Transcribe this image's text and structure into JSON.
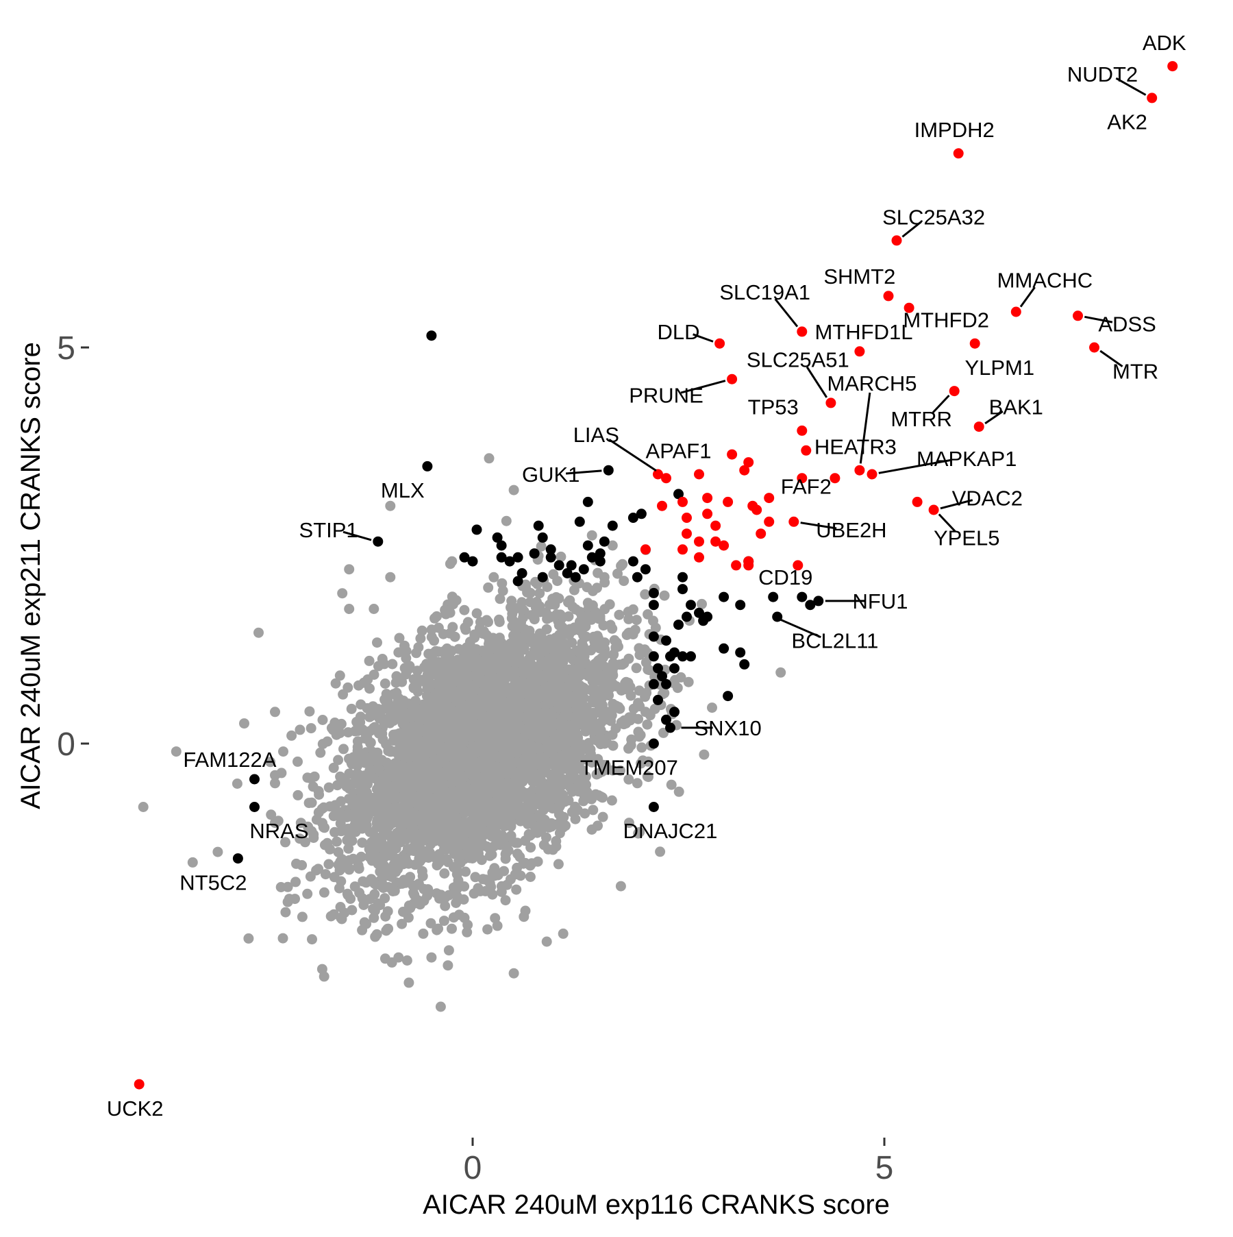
{
  "chart_data": {
    "type": "scatter",
    "xlabel": "AICAR 240uM exp116 CRANKS score",
    "ylabel": "AICAR 240uM exp211 CRANKS score",
    "xlim": [
      -4.3,
      8.8
    ],
    "ylim": [
      -4.8,
      9.2
    ],
    "x_ticks": [
      0,
      5
    ],
    "x_tick_labels": [
      "0",
      "5"
    ],
    "y_ticks": [
      0,
      5
    ],
    "y_tick_labels": [
      "0",
      "5"
    ],
    "grid": false,
    "legend": "none",
    "colors": {
      "background": "#ffffff",
      "red": "#ff0000",
      "black": "#000000",
      "gray": "#a0a0a0"
    },
    "cloud": {
      "color": "#a0a0a0",
      "description_of_bulk": "dense gray point cloud of non-significant genes",
      "center": [
        0.1,
        -0.05
      ],
      "sd": [
        0.85,
        0.85
      ],
      "correlation": 0.45,
      "n": 4000,
      "outliers": [
        [
          -4.0,
          -0.8
        ],
        [
          -3.6,
          -0.1
        ],
        [
          -3.4,
          -1.5
        ],
        [
          -2.6,
          1.4
        ],
        [
          -2.4,
          0.4
        ],
        [
          -2.4,
          -0.4
        ],
        [
          -2.3,
          -0.1
        ],
        [
          -2.2,
          0.1
        ],
        [
          -2.4,
          -1.0
        ],
        [
          -2.1,
          -1.2
        ],
        [
          -1.9,
          -1.6
        ],
        [
          -1.5,
          1.7
        ],
        [
          -1.5,
          2.2
        ],
        [
          -1.6,
          -2.2
        ],
        [
          -1.2,
          -2.2
        ],
        [
          -0.9,
          -2.7
        ],
        [
          -0.6,
          -2.4
        ],
        [
          -0.5,
          -2.7
        ],
        [
          -0.3,
          -2.8
        ],
        [
          -0.1,
          -2.2
        ],
        [
          0.3,
          -2.3
        ],
        [
          0.5,
          3.2
        ],
        [
          0.5,
          -2.9
        ],
        [
          0.9,
          -2.5
        ],
        [
          1.1,
          -2.4
        ],
        [
          1.6,
          2.1
        ],
        [
          1.8,
          -1.8
        ],
        [
          1.9,
          -1.0
        ],
        [
          2.0,
          -0.5
        ],
        [
          2.1,
          0.4
        ],
        [
          1.9,
          1.4
        ],
        [
          1.7,
          2.5
        ],
        [
          -1.0,
          3.0
        ],
        [
          0.2,
          3.6
        ],
        [
          -1.0,
          2.1
        ],
        [
          -1.2,
          1.7
        ]
      ]
    },
    "series": [
      {
        "color": "#ff0000",
        "points": [
          [
            8.5,
            8.55
          ],
          [
            8.25,
            8.15
          ],
          [
            5.9,
            7.45
          ],
          [
            5.15,
            6.35
          ],
          [
            5.05,
            5.65
          ],
          [
            5.3,
            5.5
          ],
          [
            6.6,
            5.45
          ],
          [
            7.35,
            5.4
          ],
          [
            4.0,
            5.2
          ],
          [
            6.1,
            5.05
          ],
          [
            7.55,
            5.0
          ],
          [
            3.0,
            5.05
          ],
          [
            4.7,
            4.95
          ],
          [
            3.15,
            4.6
          ],
          [
            5.85,
            4.45
          ],
          [
            4.35,
            4.3
          ],
          [
            6.15,
            4.0
          ],
          [
            4.0,
            3.95
          ],
          [
            4.05,
            3.7
          ],
          [
            3.15,
            3.65
          ],
          [
            3.35,
            3.55
          ],
          [
            4.7,
            3.45
          ],
          [
            4.85,
            3.4
          ],
          [
            2.25,
            3.4
          ],
          [
            2.35,
            3.35
          ],
          [
            2.75,
            3.4
          ],
          [
            3.3,
            3.45
          ],
          [
            4.4,
            3.35
          ],
          [
            4.0,
            3.35
          ],
          [
            5.4,
            3.05
          ],
          [
            5.6,
            2.95
          ],
          [
            3.4,
            3.0
          ],
          [
            3.6,
            3.1
          ],
          [
            3.45,
            2.95
          ],
          [
            2.3,
            3.0
          ],
          [
            2.55,
            3.05
          ],
          [
            2.6,
            2.85
          ],
          [
            2.85,
            3.1
          ],
          [
            3.1,
            3.05
          ],
          [
            2.6,
            2.65
          ],
          [
            2.85,
            2.9
          ],
          [
            2.95,
            2.75
          ],
          [
            3.6,
            2.8
          ],
          [
            2.95,
            2.55
          ],
          [
            2.75,
            2.55
          ],
          [
            3.05,
            2.5
          ],
          [
            2.55,
            2.45
          ],
          [
            2.1,
            2.45
          ],
          [
            3.2,
            2.25
          ],
          [
            3.9,
            2.8
          ],
          [
            3.5,
            2.65
          ],
          [
            2.75,
            2.35
          ],
          [
            3.35,
            2.3
          ],
          [
            3.35,
            2.25
          ],
          [
            3.95,
            2.25
          ],
          [
            -4.05,
            -4.3
          ]
        ]
      },
      {
        "color": "#000000",
        "points": [
          [
            -0.5,
            5.15
          ],
          [
            -0.55,
            3.5
          ],
          [
            -1.15,
            2.55
          ],
          [
            1.65,
            3.45
          ],
          [
            1.4,
            3.05
          ],
          [
            1.3,
            2.8
          ],
          [
            1.7,
            2.75
          ],
          [
            1.95,
            2.85
          ],
          [
            2.05,
            2.9
          ],
          [
            0.05,
            2.7
          ],
          [
            0.3,
            2.6
          ],
          [
            0.35,
            2.5
          ],
          [
            0.8,
            2.75
          ],
          [
            0.85,
            2.6
          ],
          [
            0.95,
            2.45
          ],
          [
            1.4,
            2.5
          ],
          [
            1.6,
            2.55
          ],
          [
            1.55,
            2.4
          ],
          [
            -0.1,
            2.35
          ],
          [
            0.0,
            2.3
          ],
          [
            0.35,
            2.35
          ],
          [
            0.45,
            2.3
          ],
          [
            0.55,
            2.35
          ],
          [
            0.75,
            2.4
          ],
          [
            0.95,
            2.35
          ],
          [
            1.05,
            2.25
          ],
          [
            1.2,
            2.25
          ],
          [
            1.35,
            2.2
          ],
          [
            1.45,
            2.35
          ],
          [
            1.55,
            2.3
          ],
          [
            1.25,
            2.1
          ],
          [
            0.6,
            2.15
          ],
          [
            0.55,
            2.05
          ],
          [
            0.85,
            2.1
          ],
          [
            1.15,
            2.15
          ],
          [
            1.95,
            2.3
          ],
          [
            2.0,
            2.1
          ],
          [
            2.1,
            2.2
          ],
          [
            2.5,
            3.15
          ],
          [
            2.55,
            2.1
          ],
          [
            2.2,
            1.9
          ],
          [
            2.55,
            1.95
          ],
          [
            2.2,
            1.75
          ],
          [
            2.65,
            1.75
          ],
          [
            2.6,
            1.6
          ],
          [
            2.75,
            1.65
          ],
          [
            2.8,
            1.55
          ],
          [
            2.85,
            1.6
          ],
          [
            2.5,
            1.5
          ],
          [
            2.2,
            1.35
          ],
          [
            2.35,
            1.3
          ],
          [
            2.4,
            1.1
          ],
          [
            2.45,
            1.15
          ],
          [
            2.55,
            1.1
          ],
          [
            2.2,
            1.1
          ],
          [
            2.25,
            0.95
          ],
          [
            2.3,
            0.85
          ],
          [
            2.45,
            0.95
          ],
          [
            2.35,
            0.75
          ],
          [
            2.2,
            0.75
          ],
          [
            2.25,
            0.55
          ],
          [
            2.45,
            0.4
          ],
          [
            2.35,
            0.3
          ],
          [
            2.4,
            0.2
          ],
          [
            2.2,
            0.0
          ],
          [
            3.35,
            2.3
          ],
          [
            3.65,
            1.85
          ],
          [
            3.05,
            1.85
          ],
          [
            3.25,
            1.75
          ],
          [
            3.7,
            1.6
          ],
          [
            4.0,
            1.85
          ],
          [
            4.1,
            1.75
          ],
          [
            4.2,
            1.8
          ],
          [
            3.05,
            1.2
          ],
          [
            3.25,
            1.15
          ],
          [
            3.3,
            1.0
          ],
          [
            2.65,
            1.1
          ],
          [
            3.1,
            0.6
          ],
          [
            -2.65,
            -0.45
          ],
          [
            -2.65,
            -0.8
          ],
          [
            -2.85,
            -1.45
          ],
          [
            2.2,
            -0.8
          ]
        ]
      }
    ],
    "labels": [
      {
        "text": "ADK",
        "x": 8.5,
        "y": 8.55,
        "lx": 8.4,
        "ly": 8.85
      },
      {
        "text": "NUDT2",
        "x": 8.25,
        "y": 8.15,
        "lx": 7.65,
        "ly": 8.45
      },
      {
        "text": "AK2",
        "x": 8.25,
        "y": 8.15,
        "lx": 7.95,
        "ly": 7.85
      },
      {
        "text": "IMPDH2",
        "x": 5.9,
        "y": 7.45,
        "lx": 5.85,
        "ly": 7.75
      },
      {
        "text": "SLC25A32",
        "x": 5.15,
        "y": 6.35,
        "lx": 5.6,
        "ly": 6.65
      },
      {
        "text": "SHMT2",
        "x": 5.05,
        "y": 5.65,
        "lx": 4.7,
        "ly": 5.9
      },
      {
        "text": "MMACHC",
        "x": 6.6,
        "y": 5.45,
        "lx": 6.95,
        "ly": 5.85
      },
      {
        "text": "SLC19A1",
        "x": 4.0,
        "y": 5.2,
        "lx": 3.55,
        "ly": 5.7
      },
      {
        "text": "MTHFD2",
        "x": 5.3,
        "y": 5.5,
        "lx": 5.75,
        "ly": 5.35
      },
      {
        "text": "MTHFD1L",
        "x": 4.7,
        "y": 4.95,
        "lx": 4.75,
        "ly": 5.2
      },
      {
        "text": "ADSS",
        "x": 7.35,
        "y": 5.4,
        "lx": 7.95,
        "ly": 5.3
      },
      {
        "text": "DLD",
        "x": 3.0,
        "y": 5.05,
        "lx": 2.5,
        "ly": 5.2
      },
      {
        "text": "SLC25A51",
        "x": 4.35,
        "y": 4.3,
        "lx": 3.95,
        "ly": 4.85
      },
      {
        "text": "YLPM1",
        "x": 6.1,
        "y": 5.05,
        "lx": 6.4,
        "ly": 4.75
      },
      {
        "text": "MTR",
        "x": 7.55,
        "y": 5.0,
        "lx": 8.05,
        "ly": 4.7
      },
      {
        "text": "MARCH5",
        "x": 4.7,
        "y": 3.45,
        "lx": 4.85,
        "ly": 4.55
      },
      {
        "text": "PRUNE",
        "x": 3.15,
        "y": 4.6,
        "lx": 2.35,
        "ly": 4.4
      },
      {
        "text": "TP53",
        "x": 4.0,
        "y": 3.95,
        "lx": 3.65,
        "ly": 4.25
      },
      {
        "text": "BAK1",
        "x": 6.15,
        "y": 4.0,
        "lx": 6.6,
        "ly": 4.25
      },
      {
        "text": "MTRR",
        "x": 5.85,
        "y": 4.45,
        "lx": 5.45,
        "ly": 4.1
      },
      {
        "text": "LIAS",
        "x": 2.3,
        "y": 3.4,
        "lx": 1.5,
        "ly": 3.9
      },
      {
        "text": "APAF1",
        "x": 2.35,
        "y": 3.35,
        "lx": 2.5,
        "ly": 3.7
      },
      {
        "text": "HEATR3",
        "x": 4.7,
        "y": 3.45,
        "lx": 4.65,
        "ly": 3.75
      },
      {
        "text": "MAPKAP1",
        "x": 4.85,
        "y": 3.4,
        "lx": 6.0,
        "ly": 3.6
      },
      {
        "text": "GUK1",
        "x": 1.65,
        "y": 3.45,
        "lx": 0.95,
        "ly": 3.4
      },
      {
        "text": "MLX",
        "x": -0.55,
        "y": 3.5,
        "lx": -0.85,
        "ly": 3.2
      },
      {
        "text": "FAF2",
        "x": 3.6,
        "y": 3.1,
        "lx": 4.05,
        "ly": 3.25
      },
      {
        "text": "VDAC2",
        "x": 5.6,
        "y": 2.95,
        "lx": 6.25,
        "ly": 3.1
      },
      {
        "text": "STIP1",
        "x": -1.15,
        "y": 2.55,
        "lx": -1.75,
        "ly": 2.7
      },
      {
        "text": "UBE2H",
        "x": 3.9,
        "y": 2.8,
        "lx": 4.6,
        "ly": 2.7
      },
      {
        "text": "YPEL5",
        "x": 5.6,
        "y": 2.95,
        "lx": 6.0,
        "ly": 2.6
      },
      {
        "text": "CD19",
        "x": 3.95,
        "y": 2.25,
        "lx": 3.8,
        "ly": 2.1
      },
      {
        "text": "NFU1",
        "x": 4.2,
        "y": 1.8,
        "lx": 4.95,
        "ly": 1.8
      },
      {
        "text": "BCL2L11",
        "x": 3.65,
        "y": 1.6,
        "lx": 4.4,
        "ly": 1.3
      },
      {
        "text": "SNX10",
        "x": 2.45,
        "y": 0.2,
        "lx": 3.1,
        "ly": 0.2
      },
      {
        "text": "FAM122A",
        "x": -2.65,
        "y": -0.45,
        "lx": -2.95,
        "ly": -0.2
      },
      {
        "text": "TMEM207",
        "x": 2.2,
        "y": 0.0,
        "lx": 1.9,
        "ly": -0.3
      },
      {
        "text": "NRAS",
        "x": -2.65,
        "y": -0.8,
        "lx": -2.35,
        "ly": -1.1
      },
      {
        "text": "DNAJC21",
        "x": 2.2,
        "y": -0.8,
        "lx": 2.4,
        "ly": -1.1
      },
      {
        "text": "NT5C2",
        "x": -2.85,
        "y": -1.45,
        "lx": -3.15,
        "ly": -1.75
      },
      {
        "text": "UCK2",
        "x": -4.05,
        "y": -4.3,
        "lx": -4.1,
        "ly": -4.6
      }
    ]
  }
}
